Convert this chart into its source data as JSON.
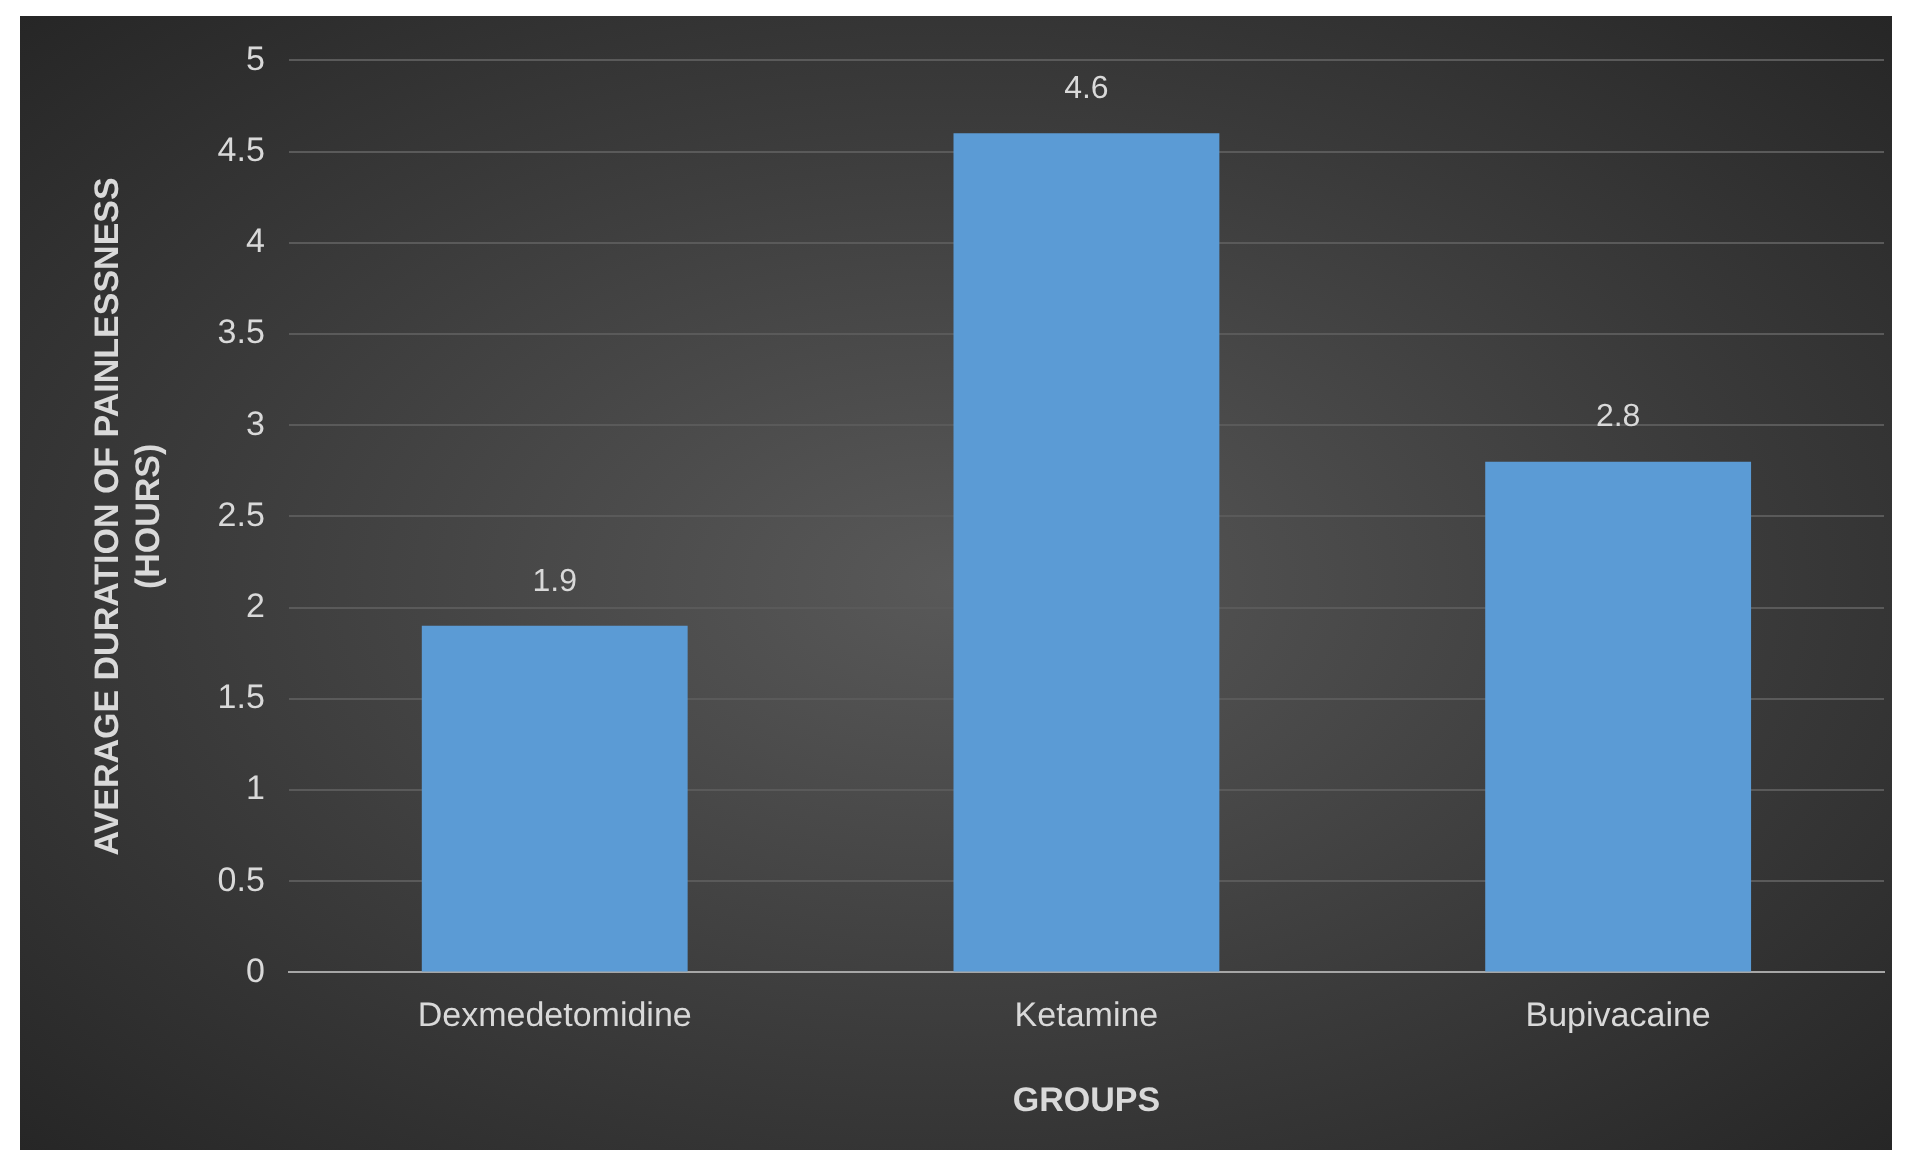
{
  "chart_data": {
    "type": "bar",
    "xlabel": "GROUPS",
    "ylabel": "AVERAGE DURATION OF PAINLESSNESS (HOURS)",
    "categories": [
      "Dexmedetomidine",
      "Ketamine",
      "Bupivacaine"
    ],
    "values": [
      1.9,
      4.6,
      2.8
    ],
    "color": "#5b9bd5",
    "ylim": [
      0,
      5
    ],
    "yticks": [
      0,
      0.5,
      1,
      1.5,
      2,
      2.5,
      3,
      3.5,
      4,
      4.5,
      5
    ],
    "grid": "y",
    "data_labels": true,
    "legend": false
  }
}
